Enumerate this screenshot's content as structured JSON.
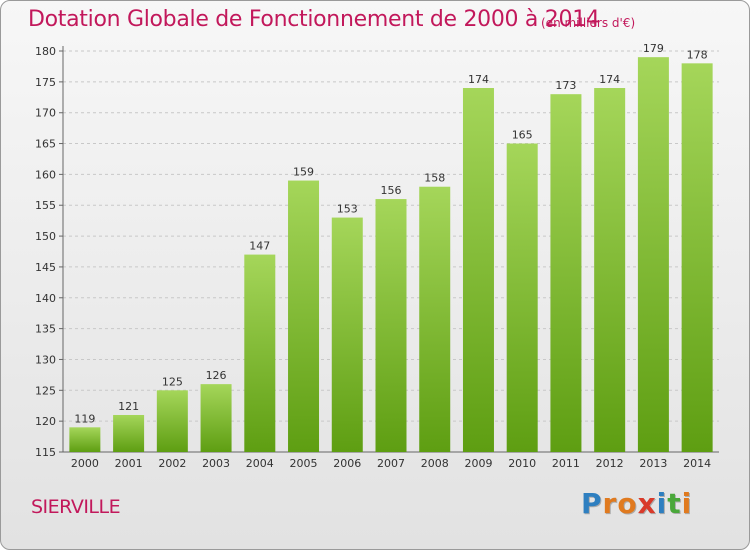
{
  "header": {
    "title": "Dotation Globale de Fonctionnement de 2000 à 2014",
    "unit_note": "(en milliers d'€)"
  },
  "footer": {
    "commune": "SIERVILLE",
    "logo_letters": [
      "P",
      "r",
      "o",
      "x",
      "i",
      "t",
      "i"
    ],
    "logo_colors": [
      "#2e7fc0",
      "#e07a1f",
      "#e07a1f",
      "#d93a2a",
      "#2e7fc0",
      "#4aa83a",
      "#e07a1f"
    ]
  },
  "colors": {
    "title": "#c2185b",
    "bar_top": "#a5d65a",
    "bar_bottom": "#5e9e12",
    "grid": "#c8c8c8"
  },
  "chart_data": {
    "type": "bar",
    "categories": [
      "2000",
      "2001",
      "2002",
      "2003",
      "2004",
      "2005",
      "2006",
      "2007",
      "2008",
      "2009",
      "2010",
      "2011",
      "2012",
      "2013",
      "2014"
    ],
    "values": [
      119,
      121,
      125,
      126,
      147,
      159,
      153,
      156,
      158,
      174,
      165,
      173,
      174,
      179,
      178
    ],
    "yticks": [
      "115",
      "120",
      "125",
      "130",
      "135",
      "140",
      "145",
      "150",
      "155",
      "160",
      "165",
      "170",
      "175",
      "180"
    ],
    "ylim": [
      115,
      180
    ],
    "grid": "horizontal, dashed",
    "legend": "none"
  }
}
